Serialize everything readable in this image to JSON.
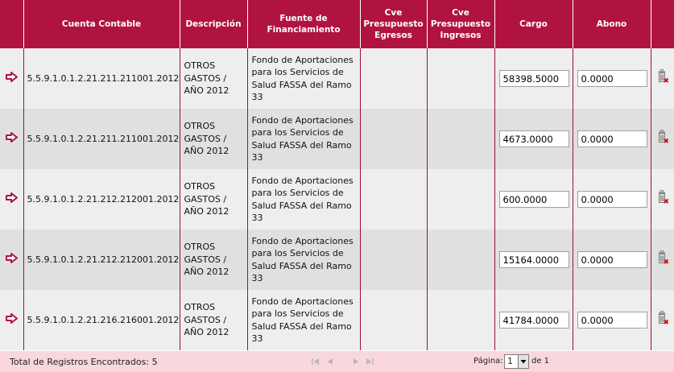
{
  "columns": {
    "cuenta": "Cuenta Contable",
    "descripcion": "Descripción",
    "fuente": "Fuente de Financiamiento",
    "cve_egresos": [
      "Cve",
      "Presupuesto",
      "Egresos"
    ],
    "cve_ingresos": [
      "Cve",
      "Presupuesto",
      "Ingresos"
    ],
    "cargo": "Cargo",
    "abono": "Abono"
  },
  "rows": [
    {
      "cuenta": "5.5.9.1.0.1.2.21.211.211001.2012",
      "descripcion": [
        "OTROS",
        "GASTOS /",
        "AÑO 2012"
      ],
      "fuente": [
        "Fondo de Aportaciones",
        "para los Servicios de",
        "Salud FASSA del Ramo",
        "33"
      ],
      "cve_egresos": "",
      "cve_ingresos": "",
      "cargo": "58398.5000",
      "abono": "0.0000"
    },
    {
      "cuenta": "5.5.9.1.0.1.2.21.211.211001.2012",
      "descripcion": [
        "OTROS",
        "GASTOS /",
        "AÑO 2012"
      ],
      "fuente": [
        "Fondo de Aportaciones",
        "para los Servicios de",
        "Salud FASSA del Ramo",
        "33"
      ],
      "cve_egresos": "",
      "cve_ingresos": "",
      "cargo": "4673.0000",
      "abono": "0.0000"
    },
    {
      "cuenta": "5.5.9.1.0.1.2.21.212.212001.2012",
      "descripcion": [
        "OTROS",
        "GASTOS /",
        "AÑO 2012"
      ],
      "fuente": [
        "Fondo de Aportaciones",
        "para los Servicios de",
        "Salud FASSA del Ramo",
        "33"
      ],
      "cve_egresos": "",
      "cve_ingresos": "",
      "cargo": "600.0000",
      "abono": "0.0000"
    },
    {
      "cuenta": "5.5.9.1.0.1.2.21.212.212001.2012",
      "descripcion": [
        "OTROS",
        "GASTOS /",
        "AÑO 2012"
      ],
      "fuente": [
        "Fondo de Aportaciones",
        "para los Servicios de",
        "Salud FASSA del Ramo",
        "33"
      ],
      "cve_egresos": "",
      "cve_ingresos": "",
      "cargo": "15164.0000",
      "abono": "0.0000"
    },
    {
      "cuenta": "5.5.9.1.0.1.2.21.216.216001.2012",
      "descripcion": [
        "OTROS",
        "GASTOS /",
        "AÑO 2012"
      ],
      "fuente": [
        "Fondo de Aportaciones",
        "para los Servicios de",
        "Salud FASSA del Ramo",
        "33"
      ],
      "cve_egresos": "",
      "cve_ingresos": "",
      "cargo": "41784.0000",
      "abono": "0.0000"
    }
  ],
  "icons": {
    "row_arrow": "arrow-right-icon",
    "delete": "trash-delete-icon"
  },
  "footer": {
    "total_text": "Total de Registros Encontrados: 5",
    "page_label": "Página:",
    "page_value": "1",
    "page_of": "de 1"
  },
  "colors": {
    "header_bg": "#b0133f",
    "footer_bg": "#f8d8dc",
    "arrow": "#b0133f"
  }
}
